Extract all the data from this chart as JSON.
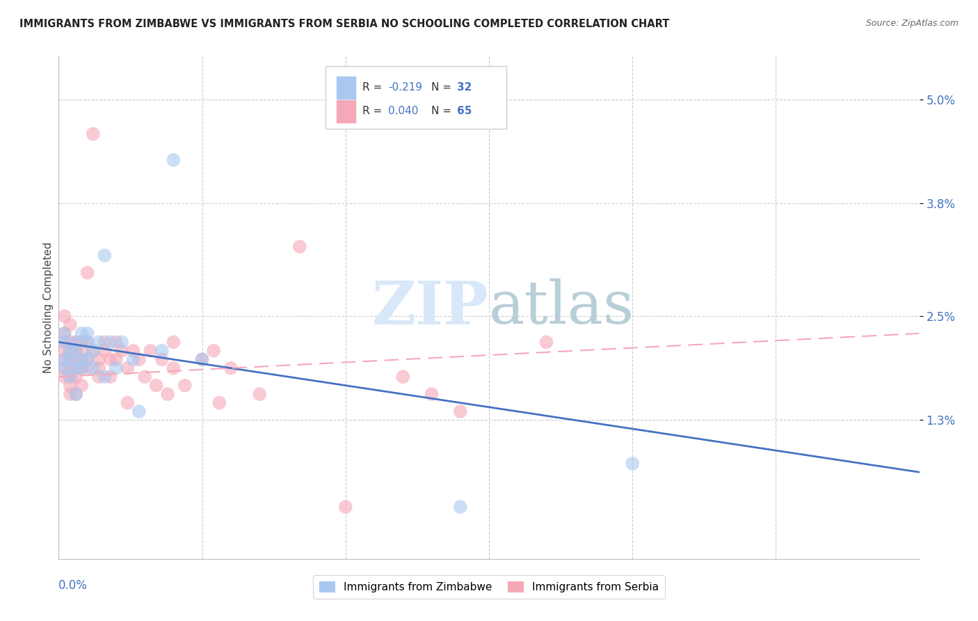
{
  "title": "IMMIGRANTS FROM ZIMBABWE VS IMMIGRANTS FROM SERBIA NO SCHOOLING COMPLETED CORRELATION CHART",
  "source": "Source: ZipAtlas.com",
  "ylabel": "No Schooling Completed",
  "x_lim": [
    0.0,
    0.15
  ],
  "y_lim": [
    -0.003,
    0.055
  ],
  "color_zimbabwe": "#A8C8F0",
  "color_serbia": "#F5A8B8",
  "color_trendline_zimbabwe": "#4472C4",
  "color_trendline_serbia": "#F5A8B8",
  "color_axis": "#4472C4",
  "color_grid": "#CCCCCC",
  "watermark_color": "#D8E8F8",
  "background_color": "#FFFFFF",
  "zimbabwe_x": [
    0.001,
    0.001,
    0.001,
    0.001,
    0.002,
    0.002,
    0.002,
    0.003,
    0.003,
    0.003,
    0.004,
    0.004,
    0.004,
    0.005,
    0.005,
    0.005,
    0.006,
    0.006,
    0.007,
    0.008,
    0.008,
    0.009,
    0.01,
    0.011,
    0.013,
    0.014,
    0.018,
    0.02,
    0.025,
    0.07,
    0.1,
    0.003
  ],
  "zimbabwe_y": [
    0.022,
    0.02,
    0.019,
    0.023,
    0.021,
    0.018,
    0.02,
    0.022,
    0.019,
    0.021,
    0.02,
    0.023,
    0.019,
    0.022,
    0.02,
    0.023,
    0.021,
    0.019,
    0.022,
    0.032,
    0.018,
    0.022,
    0.019,
    0.022,
    0.02,
    0.014,
    0.021,
    0.043,
    0.02,
    0.003,
    0.008,
    0.016
  ],
  "serbia_x": [
    0.001,
    0.001,
    0.001,
    0.001,
    0.001,
    0.001,
    0.001,
    0.002,
    0.002,
    0.002,
    0.002,
    0.002,
    0.002,
    0.002,
    0.002,
    0.003,
    0.003,
    0.003,
    0.003,
    0.003,
    0.003,
    0.004,
    0.004,
    0.004,
    0.004,
    0.004,
    0.005,
    0.005,
    0.005,
    0.005,
    0.006,
    0.006,
    0.007,
    0.007,
    0.007,
    0.008,
    0.008,
    0.009,
    0.009,
    0.01,
    0.01,
    0.011,
    0.012,
    0.012,
    0.013,
    0.014,
    0.015,
    0.016,
    0.017,
    0.018,
    0.019,
    0.02,
    0.02,
    0.022,
    0.025,
    0.027,
    0.028,
    0.03,
    0.035,
    0.042,
    0.05,
    0.06,
    0.065,
    0.07,
    0.085
  ],
  "serbia_y": [
    0.023,
    0.022,
    0.021,
    0.02,
    0.019,
    0.018,
    0.025,
    0.022,
    0.021,
    0.02,
    0.019,
    0.018,
    0.017,
    0.016,
    0.024,
    0.022,
    0.021,
    0.02,
    0.019,
    0.018,
    0.016,
    0.022,
    0.021,
    0.02,
    0.019,
    0.017,
    0.022,
    0.02,
    0.019,
    0.03,
    0.046,
    0.021,
    0.02,
    0.019,
    0.018,
    0.022,
    0.021,
    0.02,
    0.018,
    0.022,
    0.02,
    0.021,
    0.019,
    0.015,
    0.021,
    0.02,
    0.018,
    0.021,
    0.017,
    0.02,
    0.016,
    0.022,
    0.019,
    0.017,
    0.02,
    0.021,
    0.015,
    0.019,
    0.016,
    0.033,
    0.003,
    0.018,
    0.016,
    0.014,
    0.022
  ],
  "zim_trend_x": [
    0.0,
    0.15
  ],
  "zim_trend_y": [
    0.022,
    0.007
  ],
  "ser_trend_x": [
    0.0,
    0.15
  ],
  "ser_trend_y": [
    0.018,
    0.023
  ],
  "y_tick_vals": [
    0.013,
    0.025,
    0.038,
    0.05
  ],
  "y_tick_labels": [
    "1.3%",
    "2.5%",
    "3.8%",
    "5.0%"
  ]
}
